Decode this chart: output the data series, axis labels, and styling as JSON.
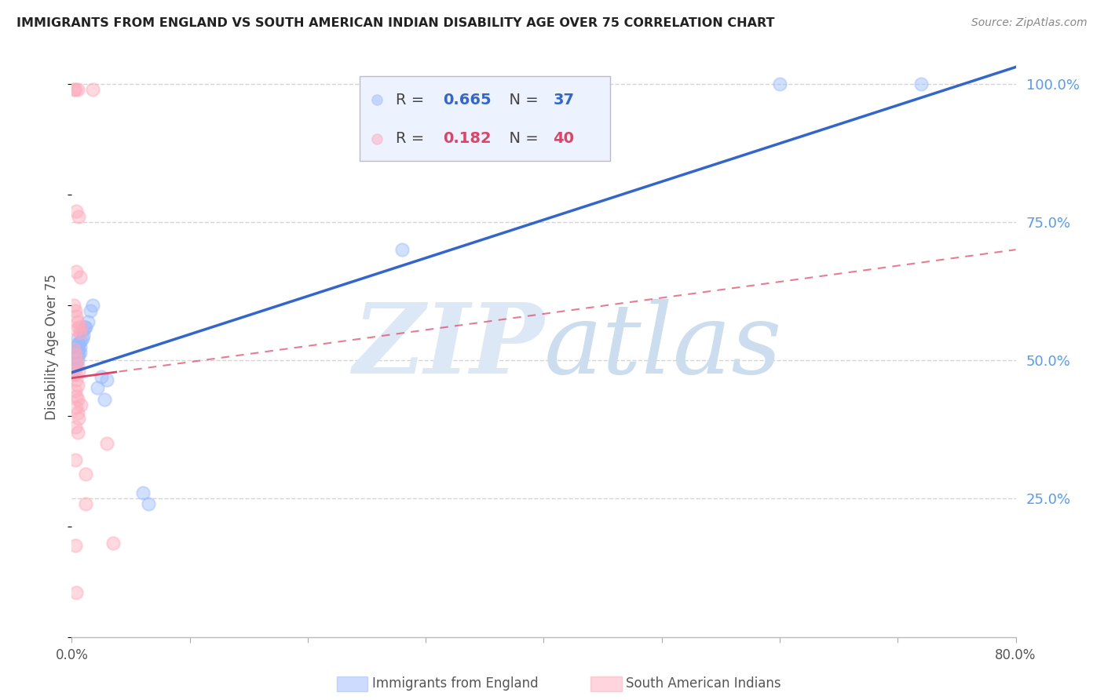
{
  "title": "IMMIGRANTS FROM ENGLAND VS SOUTH AMERICAN INDIAN DISABILITY AGE OVER 75 CORRELATION CHART",
  "source": "Source: ZipAtlas.com",
  "ylabel": "Disability Age Over 75",
  "blue_label": "Immigrants from England",
  "pink_label": "South American Indians",
  "blue_R": 0.665,
  "blue_N": 37,
  "pink_R": 0.182,
  "pink_N": 40,
  "xlim": [
    0.0,
    0.8
  ],
  "ylim": [
    0.0,
    1.05
  ],
  "blue_scatter_x": [
    0.002,
    0.003,
    0.003,
    0.003,
    0.004,
    0.004,
    0.004,
    0.004,
    0.005,
    0.005,
    0.005,
    0.005,
    0.005,
    0.006,
    0.006,
    0.006,
    0.007,
    0.007,
    0.008,
    0.009,
    0.01,
    0.01,
    0.011,
    0.012,
    0.014,
    0.016,
    0.018,
    0.025,
    0.03,
    0.022,
    0.028,
    0.06,
    0.065,
    0.28,
    0.6,
    0.72,
    0.001
  ],
  "blue_scatter_y": [
    0.485,
    0.49,
    0.5,
    0.51,
    0.495,
    0.505,
    0.515,
    0.525,
    0.5,
    0.51,
    0.52,
    0.53,
    0.54,
    0.51,
    0.52,
    0.53,
    0.515,
    0.525,
    0.535,
    0.54,
    0.545,
    0.555,
    0.56,
    0.56,
    0.57,
    0.59,
    0.6,
    0.47,
    0.465,
    0.45,
    0.43,
    0.26,
    0.24,
    0.7,
    1.0,
    1.0,
    0.475
  ],
  "pink_scatter_x": [
    0.002,
    0.003,
    0.005,
    0.018,
    0.004,
    0.006,
    0.004,
    0.007,
    0.002,
    0.003,
    0.004,
    0.005,
    0.006,
    0.007,
    0.002,
    0.003,
    0.004,
    0.005,
    0.006,
    0.003,
    0.004,
    0.005,
    0.003,
    0.004,
    0.005,
    0.004,
    0.005,
    0.006,
    0.003,
    0.005,
    0.003,
    0.008,
    0.008,
    0.012,
    0.03,
    0.012,
    0.003,
    0.004,
    0.004,
    0.035
  ],
  "pink_scatter_y": [
    0.99,
    0.99,
    0.99,
    0.99,
    0.77,
    0.76,
    0.66,
    0.65,
    0.6,
    0.59,
    0.58,
    0.57,
    0.56,
    0.55,
    0.52,
    0.51,
    0.5,
    0.49,
    0.48,
    0.475,
    0.465,
    0.455,
    0.445,
    0.435,
    0.43,
    0.415,
    0.405,
    0.395,
    0.38,
    0.37,
    0.32,
    0.42,
    0.56,
    0.24,
    0.35,
    0.295,
    0.165,
    0.08,
    0.555,
    0.17
  ],
  "background_color": "#ffffff",
  "grid_color": "#d5d5d5",
  "title_color": "#222222",
  "right_axis_color": "#5599ff",
  "watermark_color": "#dce8f5",
  "blue_dot_color": "#99bbff",
  "pink_dot_color": "#ffaabb",
  "blue_line_color": "#3366cc",
  "pink_line_color": "#dd4466",
  "legend_bg_color": "#edf2ff",
  "blue_line_intercept": 0.478,
  "blue_line_slope": 0.69,
  "pink_line_intercept": 0.468,
  "pink_line_slope": 0.29
}
